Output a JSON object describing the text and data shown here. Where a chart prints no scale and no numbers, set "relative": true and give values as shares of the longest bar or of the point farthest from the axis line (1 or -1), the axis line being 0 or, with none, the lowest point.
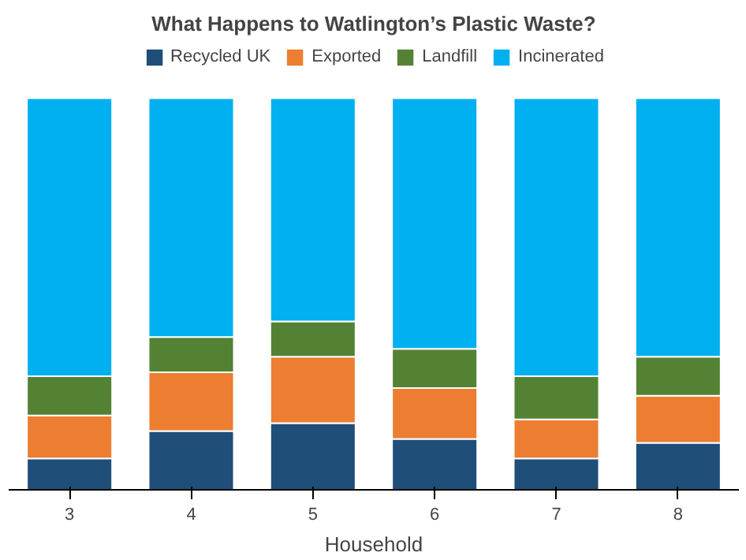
{
  "chart_data": {
    "type": "bar",
    "stacked": true,
    "relative": true,
    "title": "What Happens to Watlington’s Plastic Waste?",
    "xlabel": "Household",
    "legend": "top",
    "categories": [
      "3",
      "4",
      "5",
      "6",
      "7",
      "8"
    ],
    "series": [
      {
        "name": "Recycled UK",
        "color": "#1f4e79",
        "values": [
          0.08,
          0.15,
          0.17,
          0.13,
          0.08,
          0.12
        ]
      },
      {
        "name": "Exported",
        "color": "#ed7d31",
        "values": [
          0.11,
          0.15,
          0.17,
          0.13,
          0.1,
          0.12
        ]
      },
      {
        "name": "Landfill",
        "color": "#548235",
        "values": [
          0.1,
          0.09,
          0.09,
          0.1,
          0.11,
          0.1
        ]
      },
      {
        "name": "Incinerated",
        "color": "#00b0f0",
        "values": [
          0.71,
          0.61,
          0.57,
          0.64,
          0.71,
          0.66
        ]
      }
    ]
  }
}
